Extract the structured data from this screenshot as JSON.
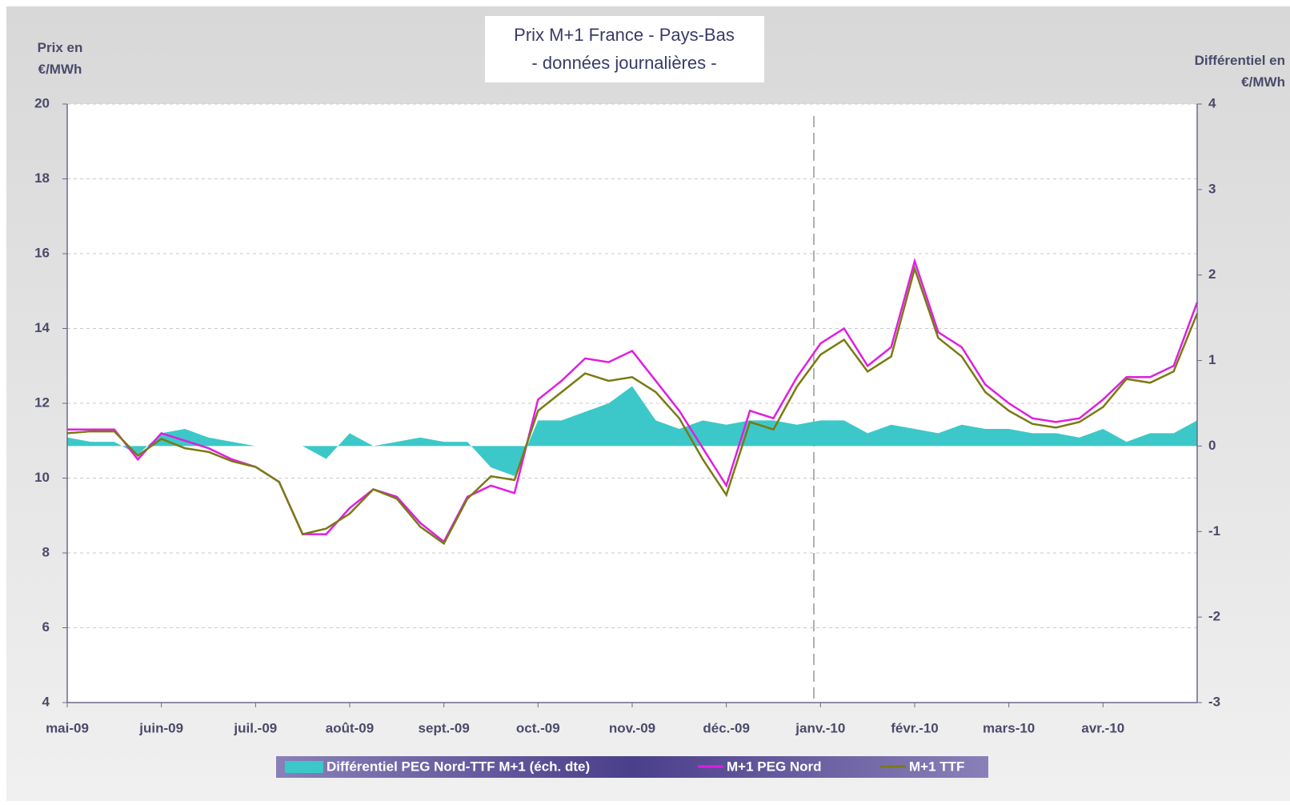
{
  "chart_data": {
    "type": "line",
    "title": "Prix M+1 France - Pays-Bas",
    "subtitle": "- données journalières -",
    "y_label": "Prix en €/MWh",
    "y2_label": "Différentiel en €/MWh",
    "categories": [
      "mai-09",
      null,
      null,
      null,
      "juin-09",
      null,
      null,
      null,
      "juil.-09",
      null,
      null,
      null,
      "août-09",
      null,
      null,
      null,
      "sept.-09",
      null,
      null,
      null,
      "oct.-09",
      null,
      null,
      null,
      "nov.-09",
      null,
      null,
      null,
      "déc.-09",
      null,
      null,
      null,
      "janv.-10",
      null,
      null,
      null,
      "févr.-10",
      null,
      null,
      null,
      "mars-10",
      null,
      null,
      null,
      "avr.-10",
      null,
      null,
      null,
      null
    ],
    "series": [
      {
        "name": "Différentiel PEG Nord-TTF M+1 (éch. dte)",
        "type": "area",
        "axis": "y2",
        "color": "#3cc8c8",
        "values": [
          0.1,
          0.05,
          0.05,
          -0.1,
          0.15,
          0.2,
          0.1,
          0.05,
          0.0,
          0.0,
          0.0,
          -0.15,
          0.15,
          0.0,
          0.05,
          0.1,
          0.05,
          0.05,
          -0.25,
          -0.35,
          0.3,
          0.3,
          0.4,
          0.5,
          0.7,
          0.3,
          0.2,
          0.3,
          0.25,
          0.3,
          0.3,
          0.25,
          0.3,
          0.3,
          0.15,
          0.25,
          0.2,
          0.15,
          0.25,
          0.2,
          0.2,
          0.15,
          0.15,
          0.1,
          0.2,
          0.05,
          0.15,
          0.15,
          0.3
        ]
      },
      {
        "name": "M+1 PEG Nord",
        "type": "line",
        "color": "#e01ee0",
        "values": [
          11.3,
          11.3,
          11.3,
          10.5,
          11.2,
          11.0,
          10.8,
          10.5,
          10.3,
          9.9,
          8.5,
          8.5,
          9.2,
          9.7,
          9.5,
          8.8,
          8.3,
          9.5,
          9.8,
          9.6,
          12.1,
          12.6,
          13.2,
          13.1,
          13.4,
          12.6,
          11.8,
          10.8,
          9.8,
          11.8,
          11.6,
          12.7,
          13.6,
          14.0,
          13.0,
          13.5,
          15.8,
          13.9,
          13.5,
          12.5,
          12.0,
          11.6,
          11.5,
          11.6,
          12.1,
          12.7,
          12.7,
          13.0,
          14.7
        ]
      },
      {
        "name": "M+1 TTF",
        "type": "line",
        "color": "#7a7a12",
        "values": [
          11.2,
          11.25,
          11.25,
          10.6,
          11.05,
          10.8,
          10.7,
          10.45,
          10.3,
          9.9,
          8.5,
          8.65,
          9.05,
          9.7,
          9.45,
          8.7,
          8.25,
          9.45,
          10.05,
          9.95,
          11.8,
          12.3,
          12.8,
          12.6,
          12.7,
          12.3,
          11.6,
          10.5,
          9.55,
          11.5,
          11.3,
          12.45,
          13.3,
          13.7,
          12.85,
          13.25,
          15.6,
          13.75,
          13.25,
          12.3,
          11.8,
          11.45,
          11.35,
          11.5,
          11.9,
          12.65,
          12.55,
          12.85,
          14.4
        ]
      }
    ],
    "ylim": [
      4,
      20
    ],
    "yticks": [
      4,
      6,
      8,
      10,
      12,
      14,
      16,
      18,
      20
    ],
    "y2lim": [
      -3,
      4
    ],
    "y2ticks": [
      -3,
      -2,
      -1,
      0,
      1,
      2,
      3,
      4
    ],
    "grid": true
  }
}
